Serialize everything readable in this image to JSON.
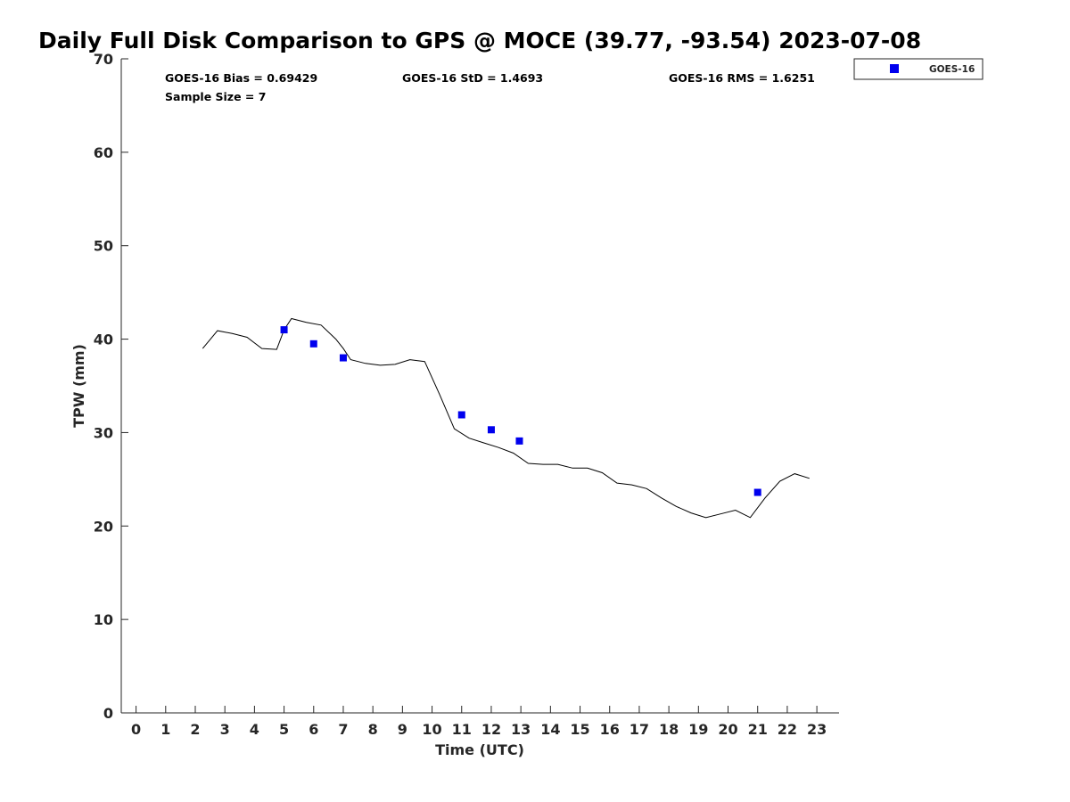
{
  "chart_data": {
    "type": "scatter",
    "title": "Daily Full Disk Comparison to GPS @ MOCE (39.77, -93.54) 2023-07-08",
    "xlabel": "Time (UTC)",
    "ylabel": "TPW (mm)",
    "xlim": [
      -0.5,
      23.75
    ],
    "ylim": [
      0,
      70
    ],
    "xticks": [
      0,
      1,
      2,
      3,
      4,
      5,
      6,
      7,
      8,
      9,
      10,
      11,
      12,
      13,
      14,
      15,
      16,
      17,
      18,
      19,
      20,
      21,
      22,
      23
    ],
    "yticks": [
      0,
      10,
      20,
      30,
      40,
      50,
      60,
      70
    ],
    "stats": {
      "bias": "GOES-16 Bias = 0.69429",
      "std": "GOES-16 StD = 1.4693",
      "rms": "GOES-16 RMS = 1.6251",
      "sample": "Sample Size = 7"
    },
    "legend": {
      "position": "top-right",
      "entries": [
        "GOES-16"
      ]
    },
    "series": [
      {
        "name": "GPS",
        "kind": "line",
        "color": "#000000",
        "x": [
          2.25,
          2.75,
          3.25,
          3.75,
          4.25,
          4.75,
          5.0,
          5.25,
          5.75,
          6.25,
          6.75,
          7.0,
          7.25,
          7.75,
          8.25,
          8.75,
          9.25,
          9.75,
          10.25,
          10.75,
          11.25,
          11.75,
          12.25,
          12.75,
          13.25,
          13.75,
          14.25,
          14.75,
          15.25,
          15.75,
          16.25,
          16.75,
          17.25,
          17.75,
          18.25,
          18.75,
          19.25,
          19.75,
          20.25,
          20.75,
          21.25,
          21.75,
          22.25,
          22.75
        ],
        "y": [
          39.0,
          40.9,
          40.6,
          40.2,
          39.0,
          38.9,
          41.0,
          42.2,
          41.8,
          41.5,
          40.0,
          39.0,
          37.8,
          37.4,
          37.2,
          37.3,
          37.8,
          37.6,
          34.1,
          30.4,
          29.4,
          28.9,
          28.4,
          27.8,
          26.7,
          26.6,
          26.6,
          26.2,
          26.2,
          25.7,
          24.6,
          24.4,
          24.0,
          23.0,
          22.1,
          21.4,
          20.9,
          21.3,
          21.7,
          20.9,
          23.0,
          24.8,
          25.6,
          25.1
        ]
      },
      {
        "name": "GOES-16",
        "kind": "scatter",
        "color": "#0000ee",
        "x": [
          5.0,
          6.0,
          7.0,
          11.0,
          12.0,
          12.95,
          21.0
        ],
        "y": [
          41.0,
          39.5,
          38.0,
          31.9,
          30.3,
          29.1,
          23.6
        ]
      }
    ]
  }
}
